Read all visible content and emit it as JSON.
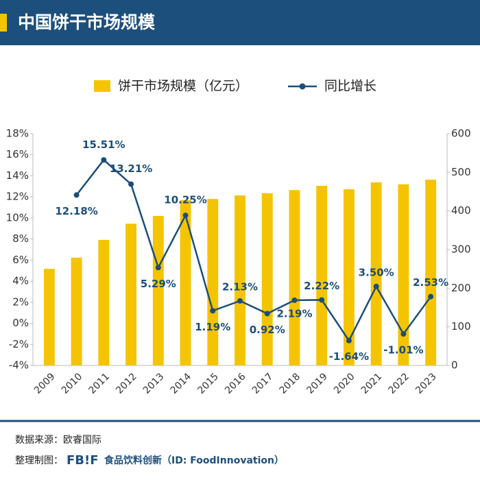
{
  "chart_data": {
    "type": "bar_line",
    "title": "中国饼干市场规模",
    "categories": [
      "2009",
      "2010",
      "2011",
      "2012",
      "2013",
      "2014",
      "2015",
      "2016",
      "2017",
      "2018",
      "2019",
      "2020",
      "2021",
      "2022",
      "2023"
    ],
    "series": [
      {
        "name": "饼干市场规模（亿元）",
        "type": "bar",
        "color": "#f5c400",
        "axis": "y2",
        "values": [
          250,
          279,
          325,
          367,
          387,
          428,
          431,
          440,
          446,
          454,
          465,
          456,
          474,
          469,
          481
        ]
      },
      {
        "name": "同比增长",
        "type": "line",
        "color": "#1a4e7a",
        "axis": "y",
        "values": [
          null,
          12.18,
          15.51,
          13.21,
          5.29,
          10.25,
          1.19,
          2.13,
          0.92,
          2.19,
          2.22,
          -1.64,
          3.5,
          -1.01,
          2.53
        ],
        "value_labels": [
          null,
          "12.18%",
          "15.51%",
          "13.21%",
          "5.29%",
          "10.25%",
          "1.19%",
          "2.13%",
          "0.92%",
          "2.19%",
          "2.22%",
          "-1.64%",
          "3.50%",
          "-1.01%",
          "2.53%"
        ]
      }
    ],
    "ylim": [
      -4,
      18
    ],
    "yticks": [
      {
        "value": -4,
        "label": "-4%"
      },
      {
        "value": -2,
        "label": "-2%"
      },
      {
        "value": 0,
        "label": "0%"
      },
      {
        "value": 2,
        "label": "2%"
      },
      {
        "value": 4,
        "label": "4%"
      },
      {
        "value": 6,
        "label": "6%"
      },
      {
        "value": 8,
        "label": "8%"
      },
      {
        "value": 10,
        "label": "10%"
      },
      {
        "value": 12,
        "label": "12%"
      },
      {
        "value": 14,
        "label": "14%"
      },
      {
        "value": 16,
        "label": "16%"
      },
      {
        "value": 18,
        "label": "18%"
      }
    ],
    "y2lim": [
      0,
      600
    ],
    "y2ticks": [
      0,
      100,
      200,
      300,
      400,
      500,
      600
    ],
    "grid": false
  },
  "footer": {
    "source": "数据来源：欧睿国际",
    "credit_label": "整理制图：",
    "logo": "FB!F",
    "credit": "食品饮料创新（ID: FoodInnovation）"
  }
}
